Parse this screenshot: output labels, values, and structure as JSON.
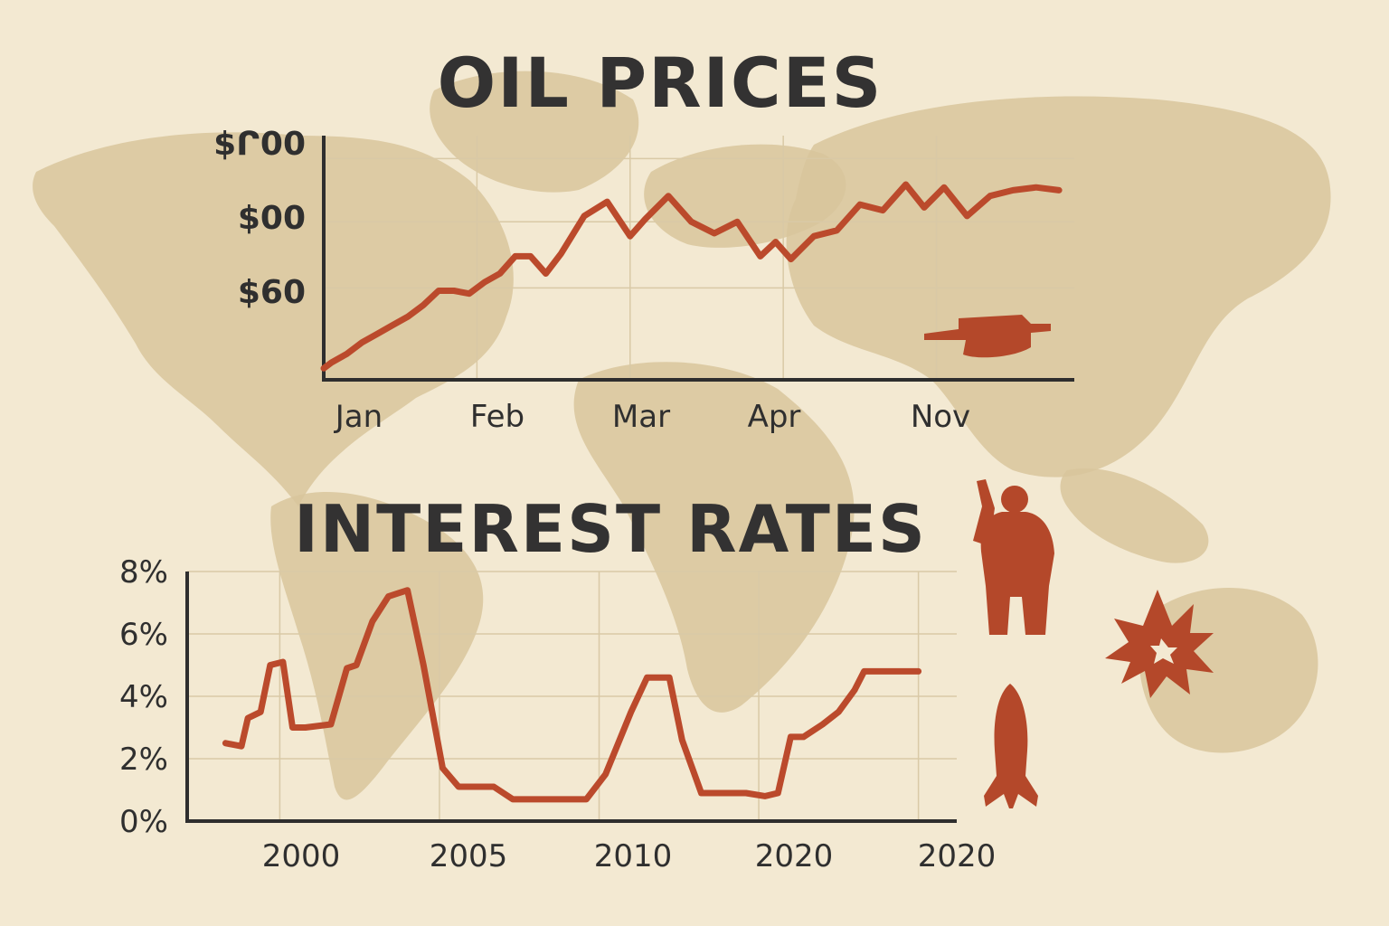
{
  "colors": {
    "background": "#f3e9d2",
    "map": "#d8c69c",
    "line": "#bb4a2c",
    "text": "#333232",
    "grid": "#d9c9a6"
  },
  "decorations": [
    "world-map",
    "tank-icon",
    "soldier-icon",
    "explosion-icon",
    "missile-icon"
  ],
  "chart_data": [
    {
      "type": "line",
      "title": "OIL PRICES",
      "xlabel": "",
      "ylabel": "",
      "x_tick_labels": [
        "Jan",
        "Feb",
        "Mar",
        "Apr",
        "Nov"
      ],
      "y_tick_labels": [
        "$60",
        "$00",
        "$ᒋ00"
      ],
      "ylim": [
        30,
        115
      ],
      "grid": true,
      "series": [
        {
          "x": [
            0,
            0.05,
            0.15,
            0.25,
            0.35,
            0.45,
            0.55,
            0.65,
            0.75,
            0.85,
            0.95,
            1.05,
            1.15,
            1.25,
            1.35,
            1.45,
            1.55,
            1.7,
            1.85,
            2.0,
            2.1,
            2.25,
            2.4,
            2.55,
            2.7,
            2.85,
            2.95,
            3.05,
            3.2,
            3.35,
            3.5,
            3.65,
            3.8,
            3.92,
            4.05,
            4.2,
            4.35,
            4.5,
            4.65,
            4.8
          ],
          "values": [
            34,
            36,
            39,
            43,
            46,
            49,
            52,
            56,
            61,
            61,
            60,
            64,
            67,
            73,
            73,
            67,
            74,
            87,
            92,
            80,
            86,
            94,
            85,
            81,
            85,
            73,
            78,
            72,
            80,
            82,
            91,
            89,
            98,
            90,
            97,
            87,
            94,
            96,
            97,
            96
          ]
        }
      ]
    },
    {
      "type": "line",
      "title": "INTEREST RATES",
      "xlabel": "",
      "ylabel": "",
      "x_tick_labels": [
        "2000",
        "2005",
        "2010",
        "2020",
        "2020"
      ],
      "y_tick_labels": [
        "0%",
        "2%",
        "4%",
        "6%",
        "8%"
      ],
      "ylim": [
        0,
        8
      ],
      "grid": true,
      "series": [
        {
          "x": [
            1998.3,
            1998.8,
            1999.0,
            1999.4,
            1999.7,
            2000.1,
            2000.4,
            2000.8,
            2001.6,
            2002.1,
            2002.4,
            2002.9,
            2003.4,
            2003.7,
            2004.0,
            2004.5,
            2005.1,
            2005.6,
            2006.1,
            2006.7,
            2007.3,
            2008.1,
            2008.9,
            2009.6,
            2010.2,
            2010.6,
            2011.0,
            2011.5,
            2011.8,
            2012.2,
            2012.6,
            2013.2,
            2013.8,
            2014.6,
            2015.2,
            2015.6,
            2016.0,
            2016.4,
            2017.0,
            2017.5,
            2018.0,
            2018.3,
            2018.6,
            2019.0,
            2019.3,
            2019.6,
            2020.0
          ],
          "values": [
            2.5,
            2.4,
            3.3,
            3.5,
            5.0,
            5.1,
            3.0,
            3.0,
            3.1,
            4.9,
            5.0,
            6.4,
            7.2,
            7.3,
            7.4,
            5.0,
            1.7,
            1.1,
            1.1,
            1.1,
            0.7,
            0.7,
            0.7,
            0.7,
            1.5,
            2.5,
            3.5,
            4.6,
            4.6,
            4.6,
            2.6,
            0.9,
            0.9,
            0.9,
            0.8,
            0.9,
            2.7,
            2.7,
            3.1,
            3.5,
            4.2,
            4.8,
            4.8,
            4.8,
            4.8,
            4.8,
            4.8
          ]
        }
      ]
    }
  ]
}
